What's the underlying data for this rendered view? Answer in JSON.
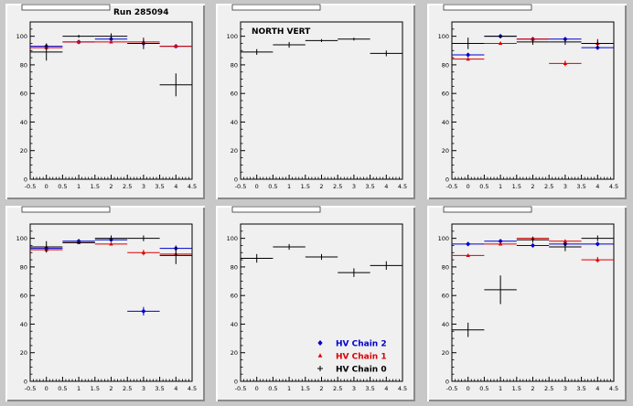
{
  "run_label": "Run 285094",
  "colors": {
    "chain2": "#0000cc",
    "chain1": "#dd0000",
    "chain0": "#000000",
    "frame_bg": "#f0f0f0",
    "page_bg": "#c8c8c8"
  },
  "legend": [
    {
      "label": "HV Chain 2",
      "color": "#0000cc",
      "marker": "diamond"
    },
    {
      "label": "HV Chain 1",
      "color": "#dd0000",
      "marker": "triangle"
    },
    {
      "label": "HV Chain 0",
      "color": "#000000",
      "marker": "cross"
    }
  ],
  "chart_data": [
    {
      "type": "scatter",
      "annotation": "Run 285094",
      "xlim": [
        -0.5,
        4.5
      ],
      "ylim": [
        0,
        110
      ],
      "x_ticks": [
        "-0.5",
        "0",
        "0.5",
        "1",
        "1.5",
        "2",
        "2.5",
        "3",
        "3.5",
        "4",
        "4.5"
      ],
      "y_ticks": [
        "0",
        "20",
        "40",
        "60",
        "80",
        "100"
      ],
      "series": [
        {
          "color": "#0000cc",
          "marker": "diamond",
          "x": [
            0,
            1,
            2,
            3,
            4
          ],
          "y": [
            93,
            96,
            98,
            95,
            93
          ],
          "yerr": [
            1,
            1,
            1,
            1,
            1
          ]
        },
        {
          "color": "#dd0000",
          "marker": "triangle",
          "x": [
            0,
            1,
            2,
            3,
            4
          ],
          "y": [
            92,
            96,
            96,
            96,
            93
          ],
          "yerr": [
            1,
            1,
            1,
            1,
            1
          ]
        },
        {
          "color": "#000000",
          "marker": "cross",
          "x": [
            0,
            1,
            2,
            3,
            4
          ],
          "y": [
            89,
            100,
            100,
            95,
            66
          ],
          "yerr": [
            6,
            1,
            2,
            4,
            8
          ]
        }
      ]
    },
    {
      "type": "scatter",
      "annotation": "NORTH VERT",
      "xlim": [
        -0.5,
        4.5
      ],
      "ylim": [
        0,
        110
      ],
      "x_ticks": [
        "-0.5",
        "0",
        "0.5",
        "1",
        "1.5",
        "2",
        "2.5",
        "3",
        "3.5",
        "4",
        "4.5"
      ],
      "y_ticks": [
        "0",
        "20",
        "40",
        "60",
        "80",
        "100"
      ],
      "series": [
        {
          "color": "#000000",
          "marker": "cross",
          "x": [
            0,
            1,
            2,
            3,
            4
          ],
          "y": [
            89,
            94,
            97,
            98,
            88
          ],
          "yerr": [
            2,
            2,
            1,
            1,
            2
          ]
        }
      ]
    },
    {
      "type": "scatter",
      "xlim": [
        -0.5,
        4.5
      ],
      "ylim": [
        0,
        110
      ],
      "x_ticks": [
        "-0.5",
        "0",
        "0.5",
        "1",
        "1.5",
        "2",
        "2.5",
        "3",
        "3.5",
        "4",
        "4.5"
      ],
      "y_ticks": [
        "0",
        "20",
        "40",
        "60",
        "80",
        "100"
      ],
      "series": [
        {
          "color": "#0000cc",
          "marker": "diamond",
          "x": [
            0,
            1,
            2,
            3,
            4
          ],
          "y": [
            87,
            100,
            98,
            98,
            92
          ],
          "yerr": [
            1,
            1,
            1,
            1,
            1
          ]
        },
        {
          "color": "#dd0000",
          "marker": "triangle",
          "x": [
            0,
            1,
            2,
            3,
            4
          ],
          "y": [
            84,
            95,
            98,
            81,
            95
          ],
          "yerr": [
            1,
            1,
            1,
            2,
            1
          ]
        },
        {
          "color": "#000000",
          "marker": "cross",
          "x": [
            0,
            1,
            2,
            3,
            4
          ],
          "y": [
            95,
            100,
            96,
            96,
            95
          ],
          "yerr": [
            4,
            1,
            2,
            2,
            3
          ]
        }
      ]
    },
    {
      "type": "scatter",
      "xlim": [
        -0.5,
        4.5
      ],
      "ylim": [
        0,
        110
      ],
      "x_ticks": [
        "-0.5",
        "0",
        "0.5",
        "1",
        "1.5",
        "2",
        "2.5",
        "3",
        "3.5",
        "4",
        "4.5"
      ],
      "y_ticks": [
        "0",
        "20",
        "40",
        "60",
        "80",
        "100"
      ],
      "series": [
        {
          "color": "#0000cc",
          "marker": "diamond",
          "x": [
            0,
            1,
            2,
            3,
            4
          ],
          "y": [
            93,
            98,
            99,
            49,
            93
          ],
          "yerr": [
            2,
            1,
            1,
            3,
            2
          ]
        },
        {
          "color": "#dd0000",
          "marker": "triangle",
          "x": [
            0,
            1,
            2,
            3,
            4
          ],
          "y": [
            92,
            97,
            96,
            90,
            89
          ],
          "yerr": [
            1,
            1,
            1,
            2,
            1
          ]
        },
        {
          "color": "#000000",
          "marker": "cross",
          "x": [
            0,
            1,
            2,
            3,
            4
          ],
          "y": [
            94,
            97,
            100,
            100,
            88
          ],
          "yerr": [
            4,
            1,
            2,
            2,
            6
          ]
        }
      ]
    },
    {
      "type": "scatter",
      "xlim": [
        -0.5,
        4.5
      ],
      "ylim": [
        0,
        110
      ],
      "x_ticks": [
        "-0.5",
        "0",
        "0.5",
        "1",
        "1.5",
        "2",
        "2.5",
        "3",
        "3.5",
        "4",
        "4.5"
      ],
      "y_ticks": [
        "0",
        "20",
        "40",
        "60",
        "80",
        "100"
      ],
      "series": [
        {
          "color": "#000000",
          "marker": "cross",
          "x": [
            0,
            1,
            2,
            3,
            4
          ],
          "y": [
            86,
            94,
            87,
            76,
            81
          ],
          "yerr": [
            3,
            2,
            2,
            3,
            3
          ]
        }
      ]
    },
    {
      "type": "scatter",
      "xlim": [
        -0.5,
        4.5
      ],
      "ylim": [
        0,
        110
      ],
      "x_ticks": [
        "-0.5",
        "0",
        "0.5",
        "1",
        "1.5",
        "2",
        "2.5",
        "3",
        "3.5",
        "4",
        "4.5"
      ],
      "y_ticks": [
        "0",
        "20",
        "40",
        "60",
        "80",
        "100"
      ],
      "series": [
        {
          "color": "#0000cc",
          "marker": "diamond",
          "x": [
            0,
            1,
            2,
            3,
            4
          ],
          "y": [
            96,
            98,
            95,
            96,
            96
          ],
          "yerr": [
            1,
            1,
            1,
            1,
            1
          ]
        },
        {
          "color": "#dd0000",
          "marker": "triangle",
          "x": [
            0,
            1,
            2,
            3,
            4
          ],
          "y": [
            88,
            96,
            100,
            98,
            85
          ],
          "yerr": [
            1,
            1,
            1,
            1,
            2
          ]
        },
        {
          "color": "#000000",
          "marker": "cross",
          "x": [
            0,
            1,
            2,
            3,
            4
          ],
          "y": [
            36,
            64,
            99,
            94,
            100
          ],
          "yerr": [
            5,
            10,
            2,
            3,
            2
          ]
        }
      ]
    }
  ]
}
